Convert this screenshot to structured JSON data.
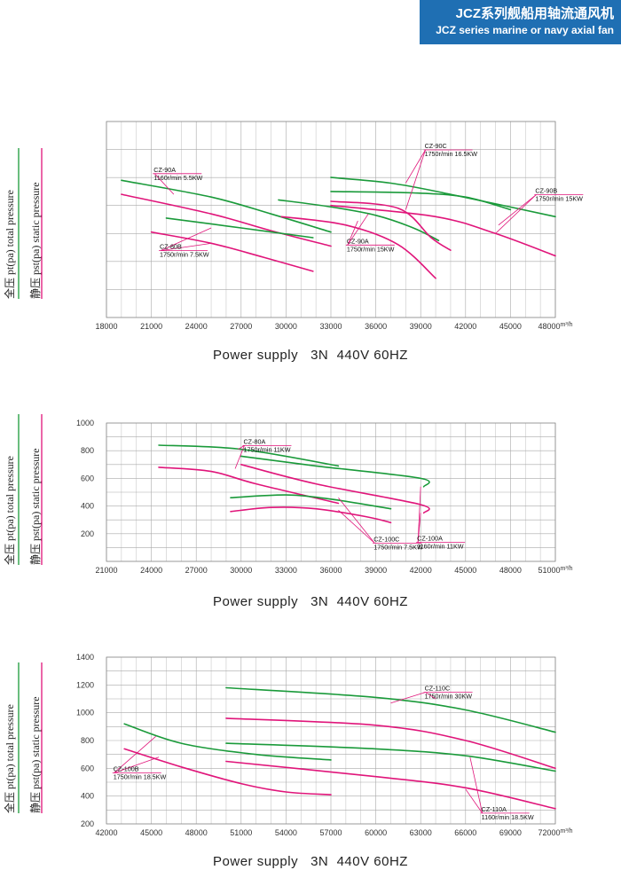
{
  "header": {
    "title_cn": "JCZ系列舰船用轴流通风机",
    "title_en": "JCZ series marine or navy axial fan"
  },
  "side_labels": {
    "total": "全压 pt(pa)  total pressure",
    "static": "静压 pst(pa)  static pressure"
  },
  "colors": {
    "total": "#1a9a3a",
    "static": "#e0157a",
    "grid": "#c8c8c8",
    "header": "#1f6fb3"
  },
  "chart_data": [
    {
      "type": "line",
      "x_unit": "m³/h",
      "xlim": [
        18000,
        48000
      ],
      "x_ticks": [
        18000,
        21000,
        24000,
        27000,
        30000,
        33000,
        36000,
        39000,
        42000,
        45000,
        48000
      ],
      "ylim": [
        0,
        7
      ],
      "y_tick_labels": [],
      "power_supply": "Power supply   3N  440V 60HZ",
      "series": [
        {
          "kind": "total",
          "points": [
            [
              19000,
              4.9
            ],
            [
              25000,
              4.3
            ],
            [
              29000,
              3.7
            ],
            [
              33000,
              3.05
            ]
          ]
        },
        {
          "kind": "static",
          "points": [
            [
              19000,
              4.4
            ],
            [
              25000,
              3.7
            ],
            [
              29000,
              3.1
            ],
            [
              33000,
              2.55
            ]
          ]
        },
        {
          "kind": "total",
          "points": [
            [
              22000,
              3.55
            ],
            [
              27000,
              3.2
            ],
            [
              31800,
              2.85
            ]
          ]
        },
        {
          "kind": "static",
          "points": [
            [
              21000,
              3.05
            ],
            [
              25000,
              2.65
            ],
            [
              28500,
              2.15
            ],
            [
              31800,
              1.65
            ]
          ]
        },
        {
          "kind": "total",
          "points": [
            [
              33000,
              5.0
            ],
            [
              37000,
              4.8
            ],
            [
              41000,
              4.4
            ],
            [
              48000,
              3.6
            ]
          ]
        },
        {
          "kind": "static",
          "points": [
            [
              33000,
              4.0
            ],
            [
              40000,
              3.6
            ],
            [
              44000,
              3.0
            ],
            [
              48000,
              2.2
            ]
          ]
        },
        {
          "kind": "total",
          "points": [
            [
              29500,
              4.2
            ],
            [
              33000,
              3.95
            ],
            [
              36000,
              3.65
            ],
            [
              38500,
              3.2
            ],
            [
              40200,
              2.75
            ]
          ]
        },
        {
          "kind": "static",
          "points": [
            [
              29700,
              3.6
            ],
            [
              34000,
              3.3
            ],
            [
              37500,
              2.6
            ],
            [
              40000,
              1.4
            ]
          ]
        },
        {
          "kind": "total",
          "points": [
            [
              33000,
              4.5
            ],
            [
              38500,
              4.45
            ],
            [
              42000,
              4.3
            ],
            [
              45000,
              3.85
            ]
          ]
        },
        {
          "kind": "static",
          "points": [
            [
              33000,
              4.15
            ],
            [
              37500,
              3.9
            ],
            [
              39700,
              2.85
            ],
            [
              41000,
              2.4
            ]
          ]
        }
      ],
      "annotations": [
        {
          "lines": [
            "CZ-90A",
            "1160r/min  5.5KW"
          ],
          "pos": [
            21100,
            5.2
          ],
          "targets": [
            [
              22500,
              4.4
            ]
          ]
        },
        {
          "lines": [
            "CZ-80B",
            "1750r/min  7.5KW"
          ],
          "pos": [
            21500,
            2.45
          ],
          "targets": [
            [
              25000,
              3.2
            ],
            [
              25000,
              2.65
            ]
          ]
        },
        {
          "lines": [
            "CZ-90C",
            "1750r/min  16.5KW"
          ],
          "pos": [
            39200,
            6.05
          ],
          "targets": [
            [
              38000,
              4.8
            ],
            [
              38000,
              3.85
            ]
          ]
        },
        {
          "lines": [
            "CZ-90A",
            "1750r/min  15KW"
          ],
          "pos": [
            34000,
            2.65
          ],
          "targets": [
            [
              35500,
              3.7
            ],
            [
              34800,
              3.45
            ]
          ]
        },
        {
          "lines": [
            "CZ-90B",
            "1750r/min  15KW"
          ],
          "pos": [
            46600,
            4.45
          ],
          "targets": [
            [
              44200,
              3.3
            ],
            [
              44000,
              3.0
            ]
          ]
        }
      ]
    },
    {
      "type": "line",
      "x_unit": "m³/h",
      "xlim": [
        21000,
        51000
      ],
      "x_ticks": [
        21000,
        24000,
        27000,
        30000,
        33000,
        36000,
        39000,
        42000,
        45000,
        48000,
        51000
      ],
      "ylim": [
        0,
        1000
      ],
      "y_tick_labels": [
        200,
        400,
        600,
        800,
        1000
      ],
      "power_supply": "Power supply   3N  440V 60HZ",
      "series": [
        {
          "kind": "total",
          "points": [
            [
              24500,
              840
            ],
            [
              30000,
              810
            ],
            [
              36500,
              690
            ]
          ]
        },
        {
          "kind": "static",
          "points": [
            [
              24500,
              680
            ],
            [
              28000,
              650
            ],
            [
              31000,
              560
            ],
            [
              36500,
              420
            ]
          ]
        },
        {
          "kind": "total",
          "points": [
            [
              30000,
              760
            ],
            [
              35000,
              690
            ],
            [
              42000,
              600
            ],
            [
              42200,
              540
            ]
          ]
        },
        {
          "kind": "static",
          "points": [
            [
              30000,
              700
            ],
            [
              35000,
              560
            ],
            [
              42000,
              410
            ],
            [
              42200,
              350
            ]
          ]
        },
        {
          "kind": "total",
          "points": [
            [
              29300,
              460
            ],
            [
              33000,
              480
            ],
            [
              36000,
              450
            ],
            [
              40000,
              380
            ]
          ]
        },
        {
          "kind": "static",
          "points": [
            [
              29300,
              360
            ],
            [
              32000,
              390
            ],
            [
              35000,
              380
            ],
            [
              38500,
              320
            ],
            [
              40000,
              280
            ]
          ]
        }
      ],
      "annotations": [
        {
          "lines": [
            "CZ-80A",
            "1750r/min  11KW"
          ],
          "pos": [
            30100,
            850
          ],
          "targets": [
            [
              29800,
              810
            ],
            [
              29600,
              670
            ]
          ]
        },
        {
          "lines": [
            "CZ-100C",
            "1750r/min  7.5KW"
          ],
          "pos": [
            38800,
            145
          ],
          "targets": [
            [
              36500,
              460
            ],
            [
              36500,
              370
            ]
          ]
        },
        {
          "lines": [
            "CZ-100A",
            "1160r/min 11KW"
          ],
          "pos": [
            41700,
            150
          ],
          "targets": [
            [
              42000,
              540
            ],
            [
              42000,
              350
            ]
          ]
        }
      ]
    },
    {
      "type": "line",
      "x_unit": "m³/h",
      "xlim": [
        42000,
        72000
      ],
      "x_ticks": [
        42000,
        45000,
        48000,
        51000,
        54000,
        57000,
        60000,
        63000,
        66000,
        69000,
        72000
      ],
      "ylim": [
        200,
        1400
      ],
      "y_tick_labels": [
        200,
        400,
        600,
        800,
        1000,
        1200,
        1400
      ],
      "power_supply": "Power supply   3N  440V 60HZ",
      "series": [
        {
          "kind": "total",
          "points": [
            [
              43200,
              920
            ],
            [
              47000,
              780
            ],
            [
              52000,
              700
            ],
            [
              57000,
              660
            ]
          ]
        },
        {
          "kind": "static",
          "points": [
            [
              43200,
              740
            ],
            [
              47000,
              610
            ],
            [
              51000,
              490
            ],
            [
              54000,
              430
            ],
            [
              57000,
              410
            ]
          ]
        },
        {
          "kind": "total",
          "points": [
            [
              50000,
              1180
            ],
            [
              60000,
              1110
            ],
            [
              66000,
              1020
            ],
            [
              72000,
              860
            ]
          ]
        },
        {
          "kind": "static",
          "points": [
            [
              50000,
              960
            ],
            [
              60000,
              910
            ],
            [
              66000,
              800
            ],
            [
              72000,
              600
            ]
          ]
        },
        {
          "kind": "total",
          "points": [
            [
              50000,
              780
            ],
            [
              60000,
              740
            ],
            [
              66000,
              690
            ],
            [
              72000,
              580
            ]
          ]
        },
        {
          "kind": "static",
          "points": [
            [
              50000,
              650
            ],
            [
              60000,
              540
            ],
            [
              66000,
              460
            ],
            [
              72000,
              310
            ]
          ]
        }
      ],
      "annotations": [
        {
          "lines": [
            "CZ-110C",
            "1750r/min  30KW"
          ],
          "pos": [
            63200,
            1160
          ],
          "targets": [
            [
              61000,
              1070
            ],
            [
              64000,
              1100
            ]
          ]
        },
        {
          "lines": [
            "CZ-100B",
            "1750r/min 18.5KW"
          ],
          "pos": [
            42400,
            580
          ],
          "targets": [
            [
              45300,
              830
            ],
            [
              45500,
              680
            ]
          ]
        },
        {
          "lines": [
            "CZ-110A",
            "1160r/min 18.5KW"
          ],
          "pos": [
            67000,
            290
          ],
          "targets": [
            [
              66300,
              680
            ],
            [
              66000,
              450
            ]
          ]
        }
      ]
    }
  ]
}
